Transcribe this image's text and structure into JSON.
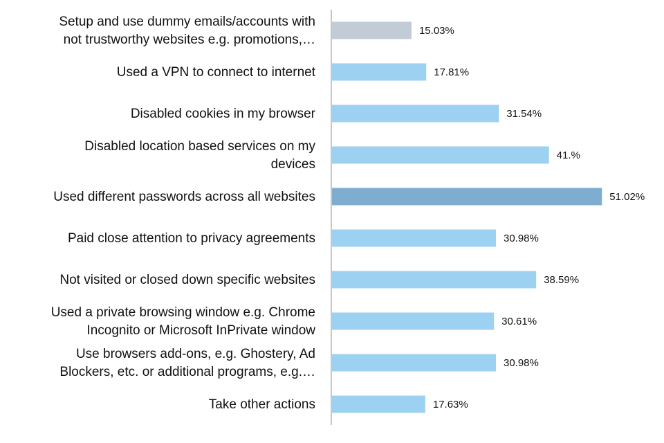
{
  "chart_data": {
    "type": "bar",
    "orientation": "horizontal",
    "title": "",
    "xlabel": "",
    "ylabel": "",
    "xlim": [
      0,
      55
    ],
    "grid": false,
    "legend": "none",
    "categories": [
      [
        "Setup and use dummy emails/accounts with",
        "not trustworthy websites e.g. promotions,…"
      ],
      [
        "Used a VPN to connect to internet"
      ],
      [
        "Disabled cookies in my browser"
      ],
      [
        "Disabled location based services on my",
        "devices"
      ],
      [
        "Used different passwords across all websites"
      ],
      [
        "Paid close attention to privacy agreements"
      ],
      [
        "Not visited or closed down specific websites"
      ],
      [
        "Used a private browsing window e.g. Chrome",
        "Incognito or Microsoft InPrivate window"
      ],
      [
        "Use browsers add-ons, e.g. Ghostery, Ad",
        "Blockers, etc. or additional programs, e.g.…"
      ],
      [
        "Take other actions"
      ]
    ],
    "values": [
      15.03,
      17.81,
      31.54,
      41.0,
      51.02,
      30.98,
      38.59,
      30.61,
      30.98,
      17.63
    ],
    "value_labels": [
      "15.03%",
      "17.81%",
      "31.54%",
      "41.%",
      "51.02%",
      "30.98%",
      "38.59%",
      "30.61%",
      "30.98%",
      "17.63%"
    ],
    "colors": {
      "default": "#9dd1f1",
      "highlight_max": "#7fadcf",
      "highlight_min": "#c3ccd6",
      "axis": "#8c8c8c"
    }
  }
}
